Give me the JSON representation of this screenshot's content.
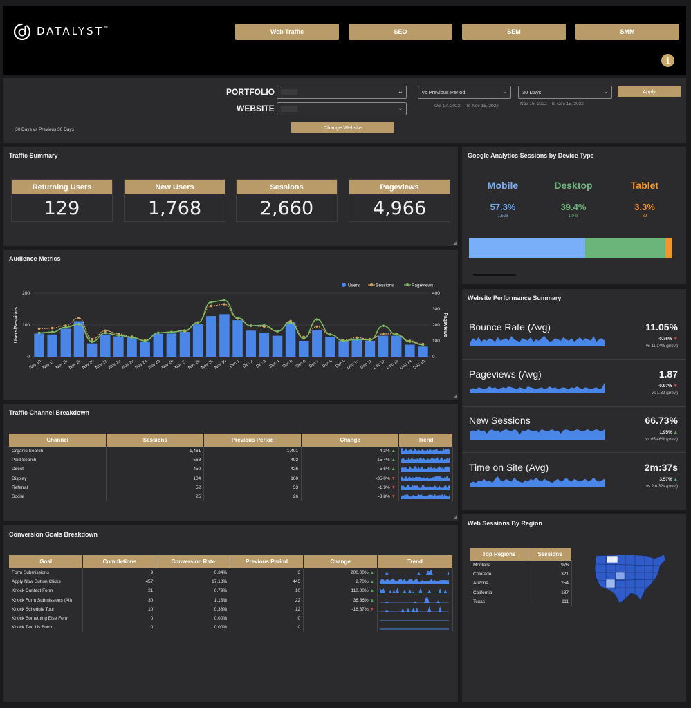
{
  "header": {
    "logo_text": "DATALYST",
    "logo_tm": "™",
    "nav": [
      "Web Traffic",
      "SEO",
      "SEM",
      "SMM"
    ],
    "info_icon": "i"
  },
  "filters": {
    "portfolio_label": "PORTFOLIO",
    "website_label": "WEBSITE",
    "portfolio_value": "",
    "website_value": "",
    "compare_select": "vs Previous Period",
    "range_select": "30 Days",
    "compare_from": "Oct 17, 2022",
    "compare_to": "to Nov 15, 2022",
    "range_from": "Nov 16, 2022",
    "range_to": "to Dec 15, 2022",
    "apply_label": "Apply",
    "change_website_label": "Change Website",
    "period_note": "30 Days vs Previous 30 Days"
  },
  "traffic_summary": {
    "title": "Traffic Summary",
    "kpis": [
      {
        "label": "Returning Users",
        "value": "129"
      },
      {
        "label": "New Users",
        "value": "1,768"
      },
      {
        "label": "Sessions",
        "value": "2,660"
      },
      {
        "label": "Pageviews",
        "value": "4,966"
      }
    ]
  },
  "device": {
    "title": "Google Analytics Sessions by Device Type",
    "items": [
      {
        "name": "Mobile",
        "pct": "57.3%",
        "count": "1,523",
        "share": 57.3,
        "color": "#79aef8"
      },
      {
        "name": "Desktop",
        "pct": "39.4%",
        "count": "1,048",
        "share": 39.4,
        "color": "#6cb57a"
      },
      {
        "name": "Tablet",
        "pct": "3.3%",
        "count": "89",
        "share": 3.3,
        "color": "#f2962c"
      }
    ]
  },
  "audience": {
    "title": "Audience Metrics"
  },
  "chart_data": {
    "type": "bar",
    "title": "Audience Metrics",
    "ylabel": "Users/Sessions",
    "y2label": "Pageviews",
    "ylim": [
      0,
      200
    ],
    "y2lim": [
      0,
      400
    ],
    "yticks": [
      "0",
      "100",
      "200"
    ],
    "y2ticks": [
      "0",
      "100",
      "200",
      "300",
      "400"
    ],
    "legend_position": "top-right",
    "grid": true,
    "categories": [
      "Nov 16",
      "Nov 17",
      "Nov 18",
      "Nov 19",
      "Nov 20",
      "Nov 21",
      "Nov 22",
      "Nov 23",
      "Nov 24",
      "Nov 25",
      "Nov 26",
      "Nov 27",
      "Nov 28",
      "Nov 29",
      "Nov 30",
      "Dec 1",
      "Dec 2",
      "Dec 3",
      "Dec 4",
      "Dec 5",
      "Dec 6",
      "Dec 7",
      "Dec 8",
      "Dec 9",
      "Dec 10",
      "Dec 11",
      "Dec 12",
      "Dec 13",
      "Dec 14",
      "Dec 15"
    ],
    "series": [
      {
        "name": "Users",
        "type": "bar",
        "axis": "left",
        "color": "#4a86e8",
        "values": [
          73,
          70,
          88,
          112,
          42,
          70,
          64,
          60,
          48,
          72,
          73,
          78,
          102,
          128,
          134,
          115,
          82,
          76,
          66,
          108,
          50,
          83,
          62,
          50,
          57,
          50,
          66,
          66,
          38,
          32
        ]
      },
      {
        "name": "Sessions",
        "type": "line",
        "axis": "left",
        "color": "#d8a15b",
        "values": [
          88,
          90,
          98,
          122,
          55,
          82,
          72,
          63,
          52,
          75,
          78,
          80,
          108,
          160,
          165,
          120,
          98,
          95,
          80,
          112,
          62,
          95,
          70,
          52,
          60,
          55,
          72,
          72,
          50,
          40
        ]
      },
      {
        "name": "Pageviews",
        "type": "line",
        "axis": "right",
        "color": "#7dbb62",
        "values": [
          150,
          155,
          185,
          205,
          95,
          150,
          135,
          122,
          100,
          150,
          155,
          165,
          215,
          345,
          355,
          245,
          195,
          198,
          160,
          215,
          115,
          235,
          140,
          100,
          110,
          105,
          195,
          140,
          95,
          75
        ]
      }
    ]
  },
  "performance": {
    "title": "Website Performance Summary",
    "rows": [
      {
        "name": "Bounce Rate (Avg)",
        "value": "11.05%",
        "change": "-0.76%",
        "dir": "down",
        "prev": "vs 11.14% (prev.)",
        "spark": [
          4,
          7,
          5,
          8,
          4,
          6,
          5,
          7,
          6,
          4,
          8,
          5,
          6,
          7,
          5,
          9,
          6,
          5,
          4,
          7,
          6,
          5,
          8,
          4,
          6,
          5,
          7,
          9,
          6,
          4,
          5,
          7,
          6,
          5,
          8,
          6,
          5,
          7,
          4,
          6,
          8,
          5,
          7,
          6,
          5,
          9,
          4,
          6,
          7,
          5
        ]
      },
      {
        "name": "Pageviews (Avg)",
        "value": "1.87",
        "change": "-0.97%",
        "dir": "down",
        "prev": "vs 1.89 (prev.)",
        "spark": [
          5,
          6,
          5,
          7,
          6,
          5,
          6,
          8,
          6,
          7,
          5,
          6,
          7,
          6,
          8,
          7,
          6,
          5,
          7,
          6,
          5,
          8,
          7,
          6,
          5,
          6,
          7,
          5,
          6,
          8,
          6,
          7,
          5,
          6,
          7,
          6,
          5,
          7,
          6,
          8,
          6,
          5,
          7,
          6,
          5,
          6,
          7,
          5,
          6,
          12
        ]
      },
      {
        "name": "New Sessions",
        "value": "66.73%",
        "change": "1.95%",
        "dir": "up",
        "prev": "vs 65.46% (prev.)",
        "spark": [
          8,
          9,
          8,
          10,
          8,
          9,
          6,
          9,
          10,
          8,
          9,
          7,
          9,
          10,
          9,
          8,
          10,
          9,
          5,
          9,
          8,
          10,
          9,
          8,
          9,
          7,
          10,
          9,
          8,
          9,
          10,
          8,
          9,
          6,
          9,
          10,
          9,
          8,
          9,
          10,
          9,
          8,
          9,
          10,
          8,
          9,
          10,
          9,
          8,
          10
        ]
      },
      {
        "name": "Time on Site (Avg)",
        "value": "2m:37s",
        "change": "3.57%",
        "dir": "up",
        "prev": "vs 2m:32s (prev.)",
        "spark": [
          3,
          4,
          3,
          5,
          4,
          6,
          4,
          5,
          3,
          6,
          8,
          5,
          4,
          6,
          5,
          4,
          7,
          5,
          4,
          3,
          5,
          4,
          6,
          5,
          7,
          5,
          4,
          6,
          5,
          4,
          3,
          5,
          6,
          4,
          5,
          7,
          5,
          4,
          6,
          5,
          4,
          5,
          6,
          4,
          5,
          7,
          5,
          4,
          5,
          6
        ]
      }
    ]
  },
  "channel": {
    "title": "Traffic Channel Breakdown",
    "headers": [
      "Channel",
      "Sessions",
      "Previous Period",
      "Change",
      "Trend"
    ],
    "rows": [
      {
        "channel": "Organic Search",
        "sessions": "1,461",
        "prev": "1,401",
        "change": "4.3%",
        "dir": "up"
      },
      {
        "channel": "Paid Search",
        "sessions": "568",
        "prev": "492",
        "change": "15.4%",
        "dir": "up"
      },
      {
        "channel": "Direct",
        "sessions": "450",
        "prev": "426",
        "change": "5.6%",
        "dir": "up"
      },
      {
        "channel": "Display",
        "sessions": "104",
        "prev": "160",
        "change": "-35.0%",
        "dir": "down"
      },
      {
        "channel": "Referral",
        "sessions": "52",
        "prev": "53",
        "change": "-1.9%",
        "dir": "down"
      },
      {
        "channel": "Social",
        "sessions": "25",
        "prev": "26",
        "change": "-3.8%",
        "dir": "down"
      }
    ]
  },
  "goals": {
    "title": "Conversion Goals Breakdown",
    "headers": [
      "Goal",
      "Completions",
      "Conversion Rate",
      "Previous Period",
      "Change",
      "Trend"
    ],
    "rows": [
      {
        "goal": "Form Submissions",
        "completions": "9",
        "rate": "0.34%",
        "prev": "3",
        "change": "200.00%",
        "dir": "up",
        "trend": "spiky"
      },
      {
        "goal": "Apply Now Button Clicks",
        "completions": "457",
        "rate": "17.18%",
        "prev": "445",
        "change": "2.70%",
        "dir": "up",
        "trend": "area"
      },
      {
        "goal": "Knock Contact Form",
        "completions": "21",
        "rate": "0.79%",
        "prev": "10",
        "change": "110.00%",
        "dir": "up",
        "trend": "spiky"
      },
      {
        "goal": "Knock Form Submissions (All)",
        "completions": "30",
        "rate": "1.13%",
        "prev": "22",
        "change": "36.36%",
        "dir": "up",
        "trend": "spiky"
      },
      {
        "goal": "Knock Schedule Tour",
        "completions": "10",
        "rate": "0.38%",
        "prev": "12",
        "change": "-16.67%",
        "dir": "down",
        "trend": "spiky"
      },
      {
        "goal": "Knock Something Else Form",
        "completions": "0",
        "rate": "0.00%",
        "prev": "0",
        "change": "",
        "dir": "",
        "trend": "flat"
      },
      {
        "goal": "Knock Text Us Form",
        "completions": "0",
        "rate": "0.00%",
        "prev": "0",
        "change": "",
        "dir": "",
        "trend": "flat"
      }
    ]
  },
  "region": {
    "title": "Web Sessions By Region",
    "headers": [
      "Top Regions",
      "Sessions"
    ],
    "rows": [
      {
        "region": "Montana",
        "sessions": "976"
      },
      {
        "region": "Colorado",
        "sessions": "321"
      },
      {
        "region": "Arizona",
        "sessions": "254"
      },
      {
        "region": "California",
        "sessions": "137"
      },
      {
        "region": "Texas",
        "sessions": "111"
      }
    ]
  },
  "colors": {
    "gold": "#b89b68",
    "blue": "#4a86e8",
    "green": "#4caf50",
    "red": "#e0473f",
    "panel": "#2b2b2d"
  }
}
